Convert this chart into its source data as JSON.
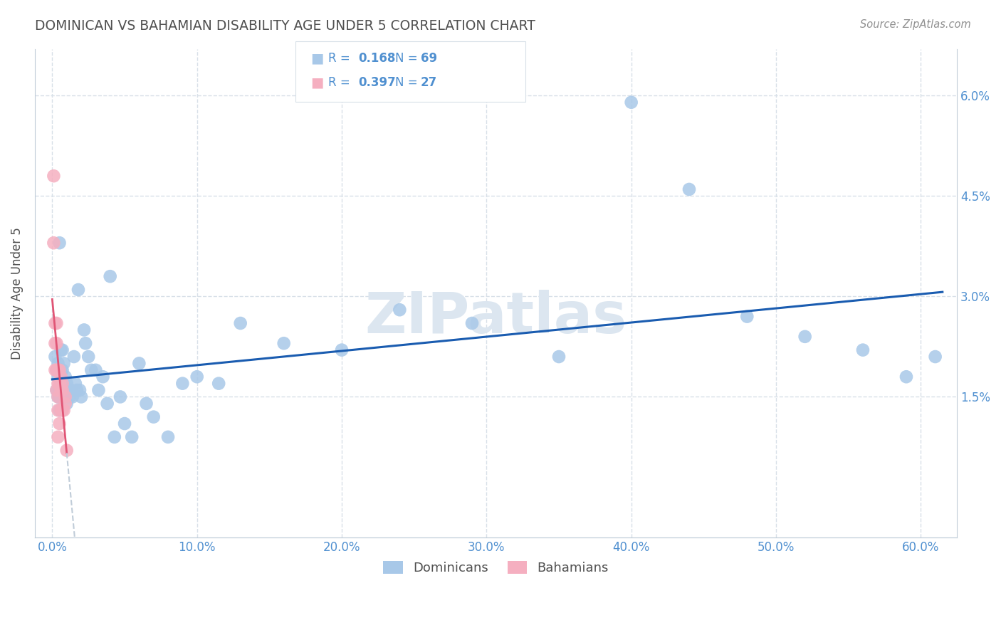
{
  "title": "DOMINICAN VS BAHAMIAN DISABILITY AGE UNDER 5 CORRELATION CHART",
  "source": "Source: ZipAtlas.com",
  "ylabel": "Disability Age Under 5",
  "xlabel_ticks": [
    "0.0%",
    "10.0%",
    "20.0%",
    "30.0%",
    "40.0%",
    "50.0%",
    "60.0%"
  ],
  "xlabel_vals": [
    0.0,
    0.1,
    0.2,
    0.3,
    0.4,
    0.5,
    0.6
  ],
  "ytick_labels": [
    "1.5%",
    "3.0%",
    "4.5%",
    "6.0%"
  ],
  "ytick_vals": [
    0.015,
    0.03,
    0.045,
    0.06
  ],
  "xlim": [
    -0.012,
    0.625
  ],
  "ylim": [
    -0.006,
    0.067
  ],
  "dominican_R": 0.168,
  "dominican_N": 69,
  "bahamian_R": 0.397,
  "bahamian_N": 27,
  "dominican_color": "#a8c8e8",
  "bahamian_color": "#f5afc0",
  "dominican_line_color": "#1a5cb0",
  "bahamian_line_color": "#e05575",
  "legend_text_color": "#5090d0",
  "title_color": "#505050",
  "source_color": "#909090",
  "axis_color": "#c0ccd8",
  "grid_color": "#d8e0e8",
  "watermark_color": "#dce6f0",
  "dominican_x": [
    0.002,
    0.003,
    0.003,
    0.004,
    0.004,
    0.004,
    0.005,
    0.005,
    0.005,
    0.005,
    0.006,
    0.006,
    0.006,
    0.006,
    0.007,
    0.007,
    0.007,
    0.008,
    0.008,
    0.008,
    0.009,
    0.009,
    0.01,
    0.01,
    0.01,
    0.011,
    0.012,
    0.012,
    0.013,
    0.014,
    0.015,
    0.016,
    0.017,
    0.018,
    0.019,
    0.02,
    0.022,
    0.023,
    0.025,
    0.027,
    0.03,
    0.032,
    0.035,
    0.038,
    0.04,
    0.043,
    0.047,
    0.05,
    0.055,
    0.06,
    0.065,
    0.07,
    0.08,
    0.09,
    0.1,
    0.115,
    0.13,
    0.16,
    0.2,
    0.24,
    0.29,
    0.35,
    0.4,
    0.44,
    0.48,
    0.52,
    0.56,
    0.59,
    0.61
  ],
  "dominican_y": [
    0.021,
    0.019,
    0.016,
    0.02,
    0.018,
    0.015,
    0.038,
    0.016,
    0.015,
    0.013,
    0.022,
    0.019,
    0.017,
    0.015,
    0.022,
    0.019,
    0.016,
    0.02,
    0.017,
    0.015,
    0.018,
    0.016,
    0.017,
    0.016,
    0.014,
    0.016,
    0.016,
    0.015,
    0.016,
    0.015,
    0.021,
    0.017,
    0.016,
    0.031,
    0.016,
    0.015,
    0.025,
    0.023,
    0.021,
    0.019,
    0.019,
    0.016,
    0.018,
    0.014,
    0.033,
    0.009,
    0.015,
    0.011,
    0.009,
    0.02,
    0.014,
    0.012,
    0.009,
    0.017,
    0.018,
    0.017,
    0.026,
    0.023,
    0.022,
    0.028,
    0.026,
    0.021,
    0.059,
    0.046,
    0.027,
    0.024,
    0.022,
    0.018,
    0.021
  ],
  "bahamian_x": [
    0.001,
    0.001,
    0.002,
    0.002,
    0.002,
    0.003,
    0.003,
    0.003,
    0.003,
    0.004,
    0.004,
    0.004,
    0.004,
    0.004,
    0.005,
    0.005,
    0.005,
    0.006,
    0.006,
    0.006,
    0.007,
    0.007,
    0.007,
    0.008,
    0.009,
    0.009,
    0.01
  ],
  "bahamian_y": [
    0.048,
    0.038,
    0.026,
    0.023,
    0.019,
    0.026,
    0.023,
    0.019,
    0.016,
    0.019,
    0.017,
    0.015,
    0.013,
    0.009,
    0.019,
    0.017,
    0.011,
    0.018,
    0.016,
    0.013,
    0.017,
    0.016,
    0.013,
    0.013,
    0.015,
    0.014,
    0.007
  ]
}
